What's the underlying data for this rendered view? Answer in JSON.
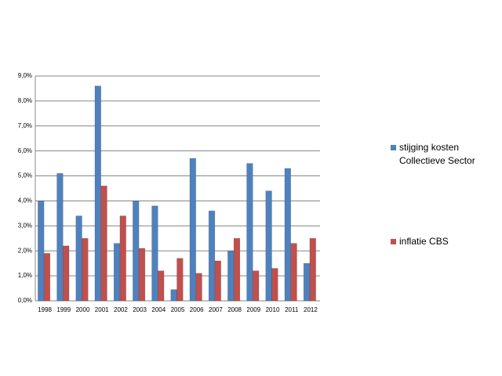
{
  "chart_data": {
    "type": "bar",
    "categories": [
      "1998",
      "1999",
      "2000",
      "2001",
      "2002",
      "2003",
      "2004",
      "2005",
      "2006",
      "2007",
      "2008",
      "2009",
      "2010",
      "2011",
      "2012"
    ],
    "series": [
      {
        "name": "stijging kosten Collectieve Sector",
        "color": "#4f81bd",
        "values": [
          4.0,
          5.1,
          3.4,
          8.6,
          2.3,
          4.0,
          3.8,
          0.45,
          5.7,
          3.6,
          2.0,
          5.5,
          4.4,
          5.3,
          1.5
        ]
      },
      {
        "name": "inflatie CBS",
        "color": "#c0504d",
        "values": [
          1.9,
          2.2,
          2.5,
          4.6,
          3.4,
          2.1,
          1.2,
          1.7,
          1.1,
          1.6,
          2.5,
          1.2,
          1.3,
          2.3,
          2.5
        ]
      }
    ],
    "ylim": [
      0,
      9
    ],
    "yticks": [
      {
        "value": 0,
        "label": "0,0%"
      },
      {
        "value": 1,
        "label": "1,0%"
      },
      {
        "value": 2,
        "label": "2,0%"
      },
      {
        "value": 3,
        "label": "3,0%"
      },
      {
        "value": 4,
        "label": "4,0%"
      },
      {
        "value": 5,
        "label": "5,0%"
      },
      {
        "value": 6,
        "label": "6,0%"
      },
      {
        "value": 7,
        "label": "7,0%"
      },
      {
        "value": 8,
        "label": "8,0%"
      },
      {
        "value": 9,
        "label": "9,0%"
      }
    ],
    "grid": true
  }
}
